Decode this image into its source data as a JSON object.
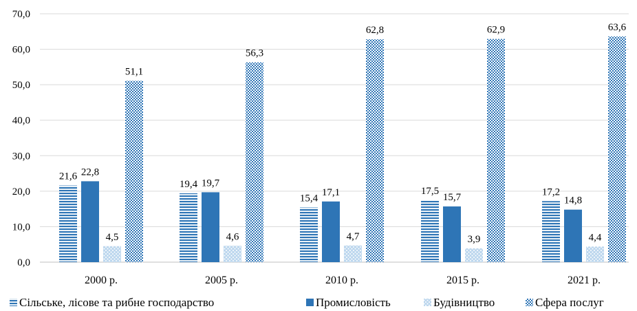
{
  "chart_data": {
    "type": "bar",
    "title": "",
    "xlabel": "",
    "ylabel": "",
    "ylim": [
      0,
      70
    ],
    "yticks": [
      "0,0",
      "10,0",
      "20,0",
      "30,0",
      "40,0",
      "50,0",
      "60,0",
      "70,0"
    ],
    "ytick_values": [
      0,
      10,
      20,
      30,
      40,
      50,
      60,
      70
    ],
    "grid": true,
    "legend_position": "bottom",
    "categories": [
      "2000 р.",
      "2005 р.",
      "2010 р.",
      "2015 р.",
      "2021 р."
    ],
    "series": [
      {
        "name": "Сільське, лісове та рибне господарство",
        "values": [
          21.6,
          19.4,
          15.4,
          17.5,
          17.2
        ],
        "labels": [
          "21,6",
          "19,4",
          "15,4",
          "17,5",
          "17,2"
        ],
        "color": "#2e75b6",
        "pattern": "horizontal-stripes"
      },
      {
        "name": "Промисловість",
        "values": [
          22.8,
          19.7,
          17.1,
          15.7,
          14.8
        ],
        "labels": [
          "22,8",
          "19,7",
          "17,1",
          "15,7",
          "14,8"
        ],
        "color": "#2e75b6",
        "pattern": "solid"
      },
      {
        "name": "Будівництво",
        "values": [
          4.5,
          4.6,
          4.7,
          3.9,
          4.4
        ],
        "labels": [
          "4,5",
          "4,6",
          "4,7",
          "3,9",
          "4,4"
        ],
        "color": "#9dc3e6",
        "pattern": "dots"
      },
      {
        "name": "Сфера послуг",
        "values": [
          51.1,
          56.3,
          62.8,
          62.9,
          63.6
        ],
        "labels": [
          "51,1",
          "56,3",
          "62,8",
          "62,9",
          "63,6"
        ],
        "color": "#2e75b6",
        "pattern": "checker"
      }
    ]
  }
}
